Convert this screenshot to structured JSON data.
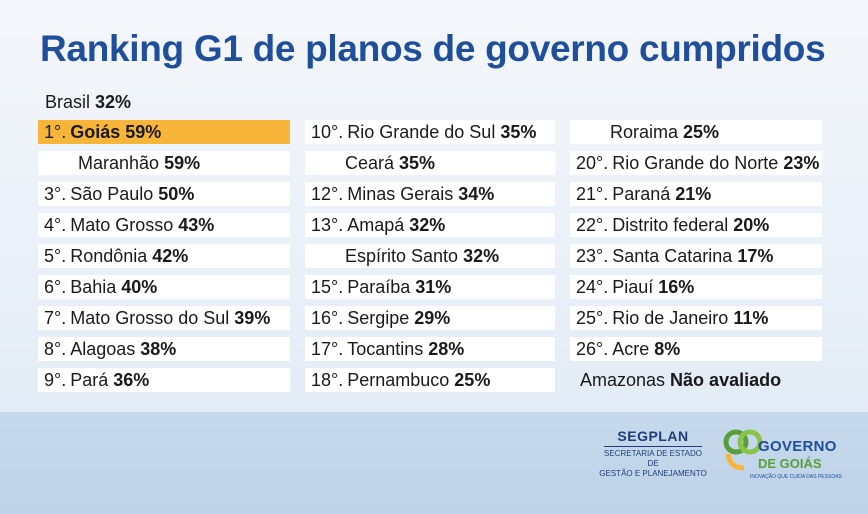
{
  "title": "Ranking G1 de planos de governo cumpridos",
  "brasil": {
    "name": "Brasil",
    "pct": "32%"
  },
  "columns": [
    [
      {
        "pos": "1°.",
        "name": "Goiás",
        "pct": "59%",
        "highlight": true,
        "name_bold": true
      },
      {
        "pos": "",
        "name": "Maranhão",
        "pct": "59%"
      },
      {
        "pos": "3°.",
        "name": "São Paulo",
        "pct": "50%"
      },
      {
        "pos": "4°.",
        "name": "Mato Grosso",
        "pct": "43%"
      },
      {
        "pos": "5°.",
        "name": "Rondônia",
        "pct": "42%"
      },
      {
        "pos": "6°.",
        "name": "Bahia",
        "pct": "40%"
      },
      {
        "pos": "7°.",
        "name": "Mato Grosso do Sul",
        "pct": "39%"
      },
      {
        "pos": "8°.",
        "name": "Alagoas",
        "pct": "38%"
      },
      {
        "pos": "9°.",
        "name": "Pará",
        "pct": "36%"
      }
    ],
    [
      {
        "pos": "10°.",
        "name": "Rio Grande do Sul",
        "pct": "35%"
      },
      {
        "pos": "",
        "name": "Ceará",
        "pct": "35%"
      },
      {
        "pos": "12°.",
        "name": "Minas Gerais",
        "pct": "34%"
      },
      {
        "pos": "13°.",
        "name": "Amapá",
        "pct": "32%"
      },
      {
        "pos": "",
        "name": "Espírito Santo",
        "pct": "32%"
      },
      {
        "pos": "15°.",
        "name": "Paraíba",
        "pct": "31%"
      },
      {
        "pos": "16°.",
        "name": "Sergipe",
        "pct": "29%"
      },
      {
        "pos": "17°.",
        "name": "Tocantins",
        "pct": "28%"
      },
      {
        "pos": "18°.",
        "name": "Pernambuco",
        "pct": "25%"
      }
    ],
    [
      {
        "pos": "",
        "name": "Roraima",
        "pct": "25%"
      },
      {
        "pos": "20°.",
        "name": "Rio Grande do Norte",
        "pct": "23%"
      },
      {
        "pos": "21°.",
        "name": "Paraná",
        "pct": "21%"
      },
      {
        "pos": "22°.",
        "name": "Distrito federal",
        "pct": "20%"
      },
      {
        "pos": "23°.",
        "name": "Santa Catarina",
        "pct": "17%"
      },
      {
        "pos": "24°.",
        "name": "Piauí",
        "pct": "16%"
      },
      {
        "pos": "25°.",
        "name": "Rio de Janeiro",
        "pct": "11%"
      },
      {
        "pos": "26°.",
        "name": "Acre",
        "pct": "8%"
      },
      {
        "pos": "",
        "name": "Amazonas",
        "pct": "Não avaliado",
        "no_bg": true
      }
    ]
  ],
  "segplan": {
    "name": "SEGPLAN",
    "line1": "SECRETARIA DE ESTADO DE",
    "line2": "GESTÃO E PLANEJAMENTO"
  },
  "governo": {
    "line1": "GOVERNO",
    "line2": "DE GOIÁS",
    "tagline": "INOVAÇÃO QUE CUIDA DAS PESSOAS"
  },
  "colors": {
    "title": "#1f4e9a",
    "highlight": "#f7b53a",
    "logo_green": "#5a9e3c",
    "logo_blue": "#1f4e9a"
  }
}
